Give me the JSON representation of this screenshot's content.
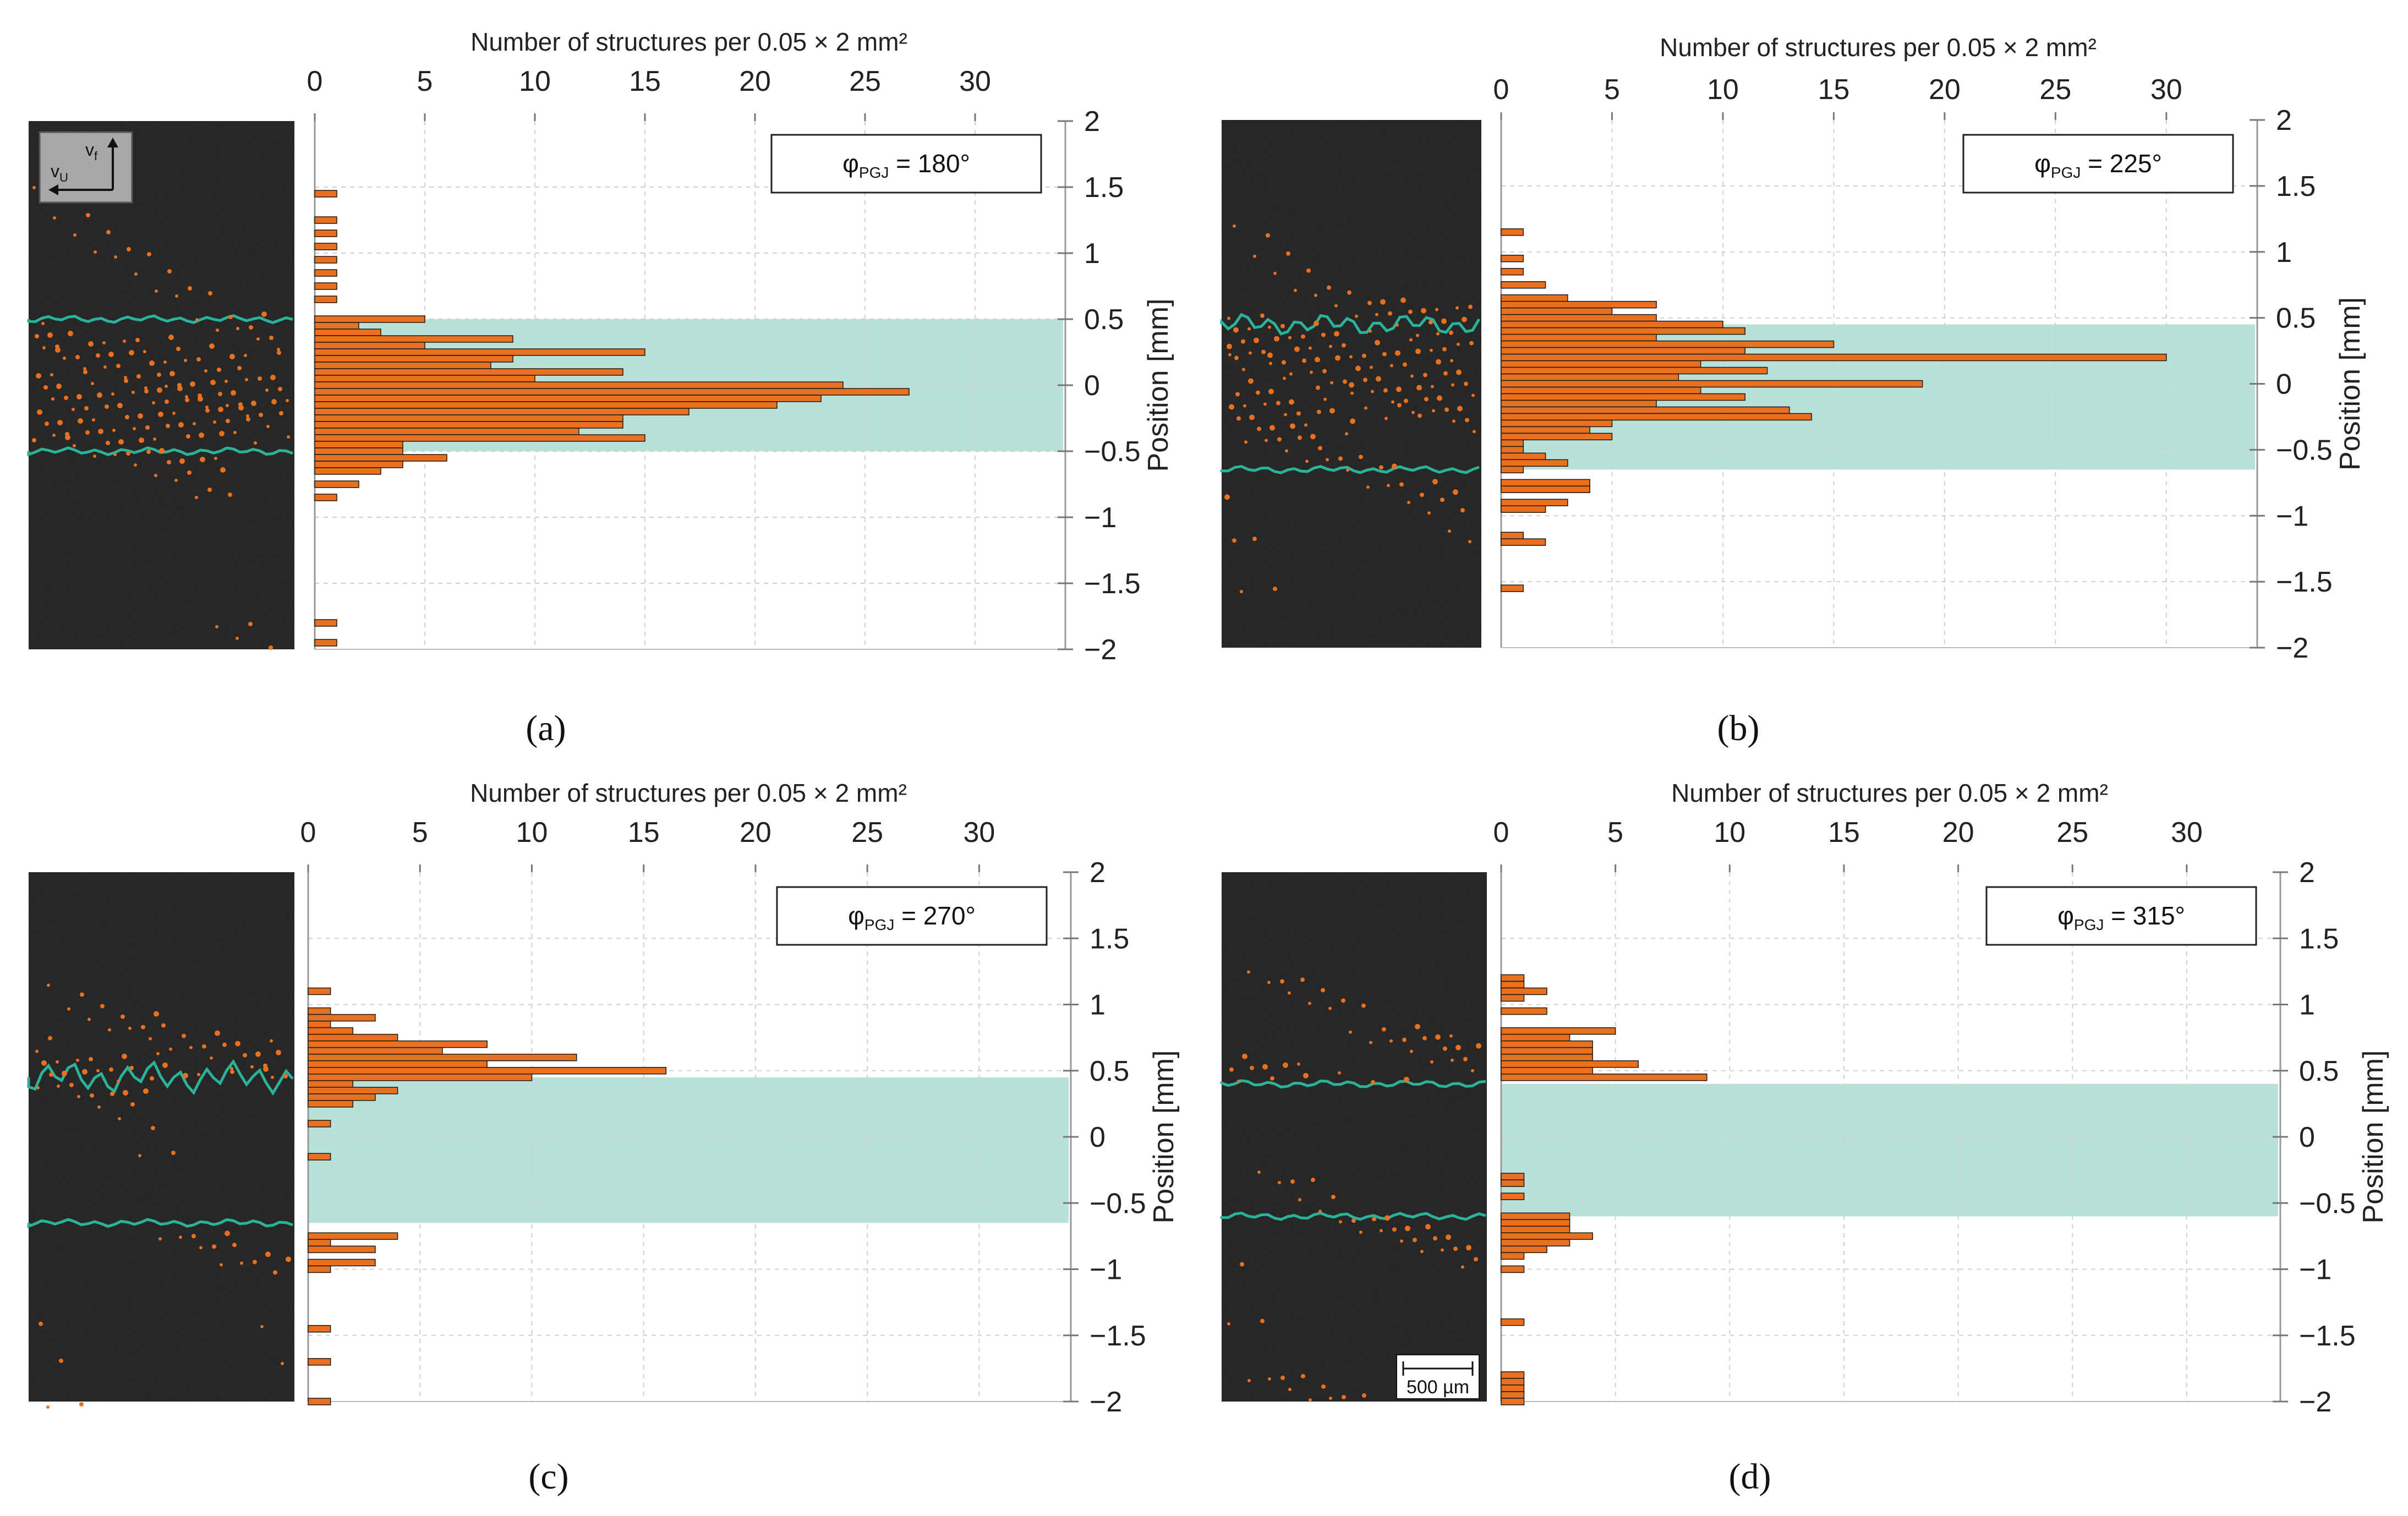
{
  "figure": {
    "x_axis_title": "Number of structures per 0.05 × 2 mm²",
    "y_axis_title": "Position [mm]",
    "x_ticks": [
      "0",
      "5",
      "10",
      "15",
      "20",
      "25",
      "30"
    ],
    "y_ticks": [
      "2",
      "1.5",
      "1",
      "0.5",
      "0",
      "−0.5",
      "−1",
      "−1.5",
      "−2"
    ],
    "velocity_labels": {
      "feed": "v",
      "feed_sub": "f",
      "circ": "v",
      "circ_sub": "U"
    },
    "scale_bar": "500 µm",
    "colors": {
      "bar": "#e8701f",
      "bar_edge": "#1a1a1a",
      "band": "#b8e2d8",
      "micrograph": "#222222",
      "boundary": "#2bb39a",
      "grid": "#d0d0d0"
    }
  },
  "chart_data": [
    {
      "type": "bar",
      "panel_label": "(a)",
      "legend": {
        "symbol": "φ",
        "sub": "PGJ",
        "text": " = 180°"
      },
      "xlabel": "Number of structures per 0.05 × 2 mm²",
      "ylabel": "Position [mm]",
      "xlim": [
        0,
        34
      ],
      "ylim": [
        -2,
        2
      ],
      "bin_width_mm": 0.05,
      "band": [
        -0.5,
        0.5
      ],
      "bins": [
        [
          1.45,
          1
        ],
        [
          1.25,
          1
        ],
        [
          1.15,
          1
        ],
        [
          1.05,
          1
        ],
        [
          0.95,
          1
        ],
        [
          0.85,
          1
        ],
        [
          0.75,
          1
        ],
        [
          0.65,
          1
        ],
        [
          0.5,
          5
        ],
        [
          0.45,
          2
        ],
        [
          0.4,
          3
        ],
        [
          0.35,
          9
        ],
        [
          0.3,
          5
        ],
        [
          0.25,
          15
        ],
        [
          0.2,
          9
        ],
        [
          0.15,
          8
        ],
        [
          0.1,
          14
        ],
        [
          0.05,
          10
        ],
        [
          0.0,
          24
        ],
        [
          -0.05,
          27
        ],
        [
          -0.1,
          23
        ],
        [
          -0.15,
          21
        ],
        [
          -0.2,
          17
        ],
        [
          -0.25,
          14
        ],
        [
          -0.3,
          14
        ],
        [
          -0.35,
          12
        ],
        [
          -0.4,
          15
        ],
        [
          -0.45,
          4
        ],
        [
          -0.5,
          4
        ],
        [
          -0.55,
          6
        ],
        [
          -0.6,
          4
        ],
        [
          -0.65,
          3
        ],
        [
          -0.75,
          2
        ],
        [
          -0.85,
          1
        ],
        [
          -1.8,
          1
        ],
        [
          -1.95,
          1
        ]
      ]
    },
    {
      "type": "bar",
      "panel_label": "(b)",
      "legend": {
        "symbol": "φ",
        "sub": "PGJ",
        "text": " = 225°"
      },
      "xlabel": "Number of structures per 0.05 × 2 mm²",
      "ylabel": "Position [mm]",
      "xlim": [
        0,
        34
      ],
      "ylim": [
        -2,
        2
      ],
      "bin_width_mm": 0.05,
      "band": [
        -0.65,
        0.45
      ],
      "bins": [
        [
          1.15,
          1
        ],
        [
          0.95,
          1
        ],
        [
          0.85,
          1
        ],
        [
          0.75,
          2
        ],
        [
          0.65,
          3
        ],
        [
          0.6,
          7
        ],
        [
          0.55,
          5
        ],
        [
          0.5,
          7
        ],
        [
          0.45,
          10
        ],
        [
          0.4,
          11
        ],
        [
          0.35,
          7
        ],
        [
          0.3,
          15
        ],
        [
          0.25,
          11
        ],
        [
          0.2,
          30
        ],
        [
          0.15,
          9
        ],
        [
          0.1,
          12
        ],
        [
          0.05,
          8
        ],
        [
          0.0,
          19
        ],
        [
          -0.05,
          9
        ],
        [
          -0.1,
          11
        ],
        [
          -0.15,
          7
        ],
        [
          -0.2,
          13
        ],
        [
          -0.25,
          14
        ],
        [
          -0.3,
          5
        ],
        [
          -0.35,
          4
        ],
        [
          -0.4,
          5
        ],
        [
          -0.45,
          1
        ],
        [
          -0.5,
          1
        ],
        [
          -0.55,
          2
        ],
        [
          -0.6,
          3
        ],
        [
          -0.65,
          1
        ],
        [
          -0.75,
          4
        ],
        [
          -0.8,
          4
        ],
        [
          -0.9,
          3
        ],
        [
          -0.95,
          2
        ],
        [
          -1.15,
          1
        ],
        [
          -1.2,
          2
        ],
        [
          -1.55,
          1
        ]
      ]
    },
    {
      "type": "bar",
      "panel_label": "(c)",
      "legend": {
        "symbol": "φ",
        "sub": "PGJ",
        "text": " = 270°"
      },
      "xlabel": "Number of structures per 0.05 × 2 mm²",
      "ylabel": "Position [mm]",
      "xlim": [
        0,
        34
      ],
      "ylim": [
        -2,
        2
      ],
      "bin_width_mm": 0.05,
      "band": [
        -0.65,
        0.45
      ],
      "bins": [
        [
          1.1,
          1
        ],
        [
          0.95,
          1
        ],
        [
          0.9,
          3
        ],
        [
          0.85,
          1
        ],
        [
          0.8,
          2
        ],
        [
          0.75,
          4
        ],
        [
          0.7,
          8
        ],
        [
          0.65,
          6
        ],
        [
          0.6,
          12
        ],
        [
          0.55,
          8
        ],
        [
          0.5,
          16
        ],
        [
          0.45,
          10
        ],
        [
          0.4,
          2
        ],
        [
          0.35,
          4
        ],
        [
          0.3,
          3
        ],
        [
          0.25,
          2
        ],
        [
          0.1,
          1
        ],
        [
          -0.15,
          1
        ],
        [
          -0.75,
          4
        ],
        [
          -0.8,
          1
        ],
        [
          -0.85,
          3
        ],
        [
          -0.95,
          3
        ],
        [
          -1.0,
          1
        ],
        [
          -1.45,
          1
        ],
        [
          -1.7,
          1
        ],
        [
          -2.0,
          1
        ]
      ]
    },
    {
      "type": "bar",
      "panel_label": "(d)",
      "legend": {
        "symbol": "φ",
        "sub": "PGJ",
        "text": " = 315°"
      },
      "xlabel": "Number of structures per 0.05 × 2 mm²",
      "ylabel": "Position [mm]",
      "xlim": [
        0,
        34
      ],
      "ylim": [
        -2,
        2
      ],
      "bin_width_mm": 0.05,
      "band": [
        -0.6,
        0.4
      ],
      "bins": [
        [
          1.2,
          1
        ],
        [
          1.15,
          1
        ],
        [
          1.1,
          2
        ],
        [
          1.05,
          1
        ],
        [
          0.95,
          2
        ],
        [
          0.8,
          5
        ],
        [
          0.75,
          3
        ],
        [
          0.7,
          4
        ],
        [
          0.65,
          4
        ],
        [
          0.6,
          4
        ],
        [
          0.55,
          6
        ],
        [
          0.5,
          4
        ],
        [
          0.45,
          9
        ],
        [
          -0.3,
          1
        ],
        [
          -0.35,
          1
        ],
        [
          -0.45,
          1
        ],
        [
          -0.6,
          3
        ],
        [
          -0.65,
          3
        ],
        [
          -0.7,
          3
        ],
        [
          -0.75,
          4
        ],
        [
          -0.8,
          3
        ],
        [
          -0.85,
          2
        ],
        [
          -0.9,
          1
        ],
        [
          -1.0,
          1
        ],
        [
          -1.4,
          1
        ],
        [
          -1.8,
          1
        ],
        [
          -1.85,
          1
        ],
        [
          -1.9,
          1
        ],
        [
          -1.95,
          1
        ],
        [
          -2.0,
          1
        ]
      ]
    }
  ]
}
